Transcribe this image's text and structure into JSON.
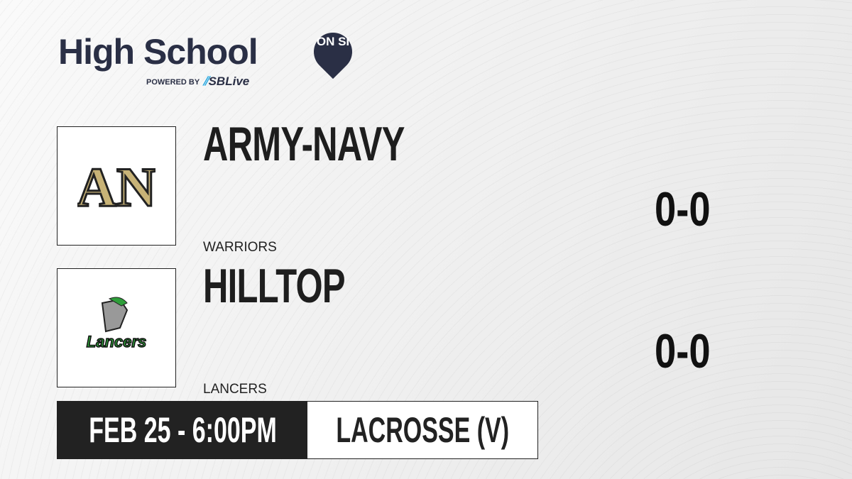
{
  "brand": {
    "title": "High School",
    "pin": "ON SI",
    "powered_by": "POWERED BY",
    "partner": "SBLive"
  },
  "teams": [
    {
      "name": "ARMY-NAVY",
      "mascot": "WARRIORS",
      "score": "0-0",
      "logo_text": "AN",
      "logo_color": "#c8b377"
    },
    {
      "name": "HILLTOP",
      "mascot": "LANCERS",
      "score": "0-0",
      "logo_text": "Lancers",
      "logo_color": "#2e9e3a"
    }
  ],
  "event": {
    "datetime": "FEB 25 - 6:00PM",
    "sport": "LACROSSE (V)"
  }
}
